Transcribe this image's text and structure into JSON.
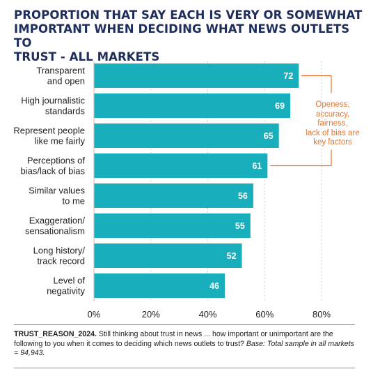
{
  "title_lines": [
    "PROPORTION THAT SAY EACH IS VERY OR SOMEWHAT",
    "IMPORTANT WHEN DECIDING WHAT NEWS OUTLETS TO",
    "TRUST - ALL MARKETS"
  ],
  "colors": {
    "bar": "#19aebc",
    "title": "#1f2d5a",
    "annotation": "#e8772e",
    "grid": "#cfcfcf"
  },
  "chart_data": {
    "type": "bar",
    "orientation": "horizontal",
    "categories": [
      [
        "Transparent",
        "and open"
      ],
      [
        "High journalistic",
        "standards"
      ],
      [
        "Represent people",
        "like me fairly"
      ],
      [
        "Perceptions of",
        "bias/lack of bias"
      ],
      [
        "Similar values",
        "to me"
      ],
      [
        "Exaggeration/",
        "sensationalism"
      ],
      [
        "Long history/",
        "track record"
      ],
      [
        "Level of",
        "negativity"
      ]
    ],
    "values": [
      72,
      69,
      65,
      61,
      56,
      55,
      52,
      46
    ],
    "data_labels": [
      "72",
      "69",
      "65",
      "61",
      "56",
      "55",
      "52",
      "46"
    ],
    "xlim": [
      0,
      80
    ],
    "xticks": [
      0,
      20,
      40,
      60,
      80
    ],
    "xtick_labels": [
      "0%",
      "20%",
      "40%",
      "60%",
      "80%"
    ],
    "grid": true,
    "annotation": {
      "lines": [
        "Openess,",
        "accuracy,",
        "fairness,",
        "lack of bias are",
        "key factors"
      ],
      "bracket_categories": [
        0,
        3
      ]
    }
  },
  "footnote": {
    "code": "TRUST_REASON_2024.",
    "text": " Still thinking about trust in news ... how important or unimportant are the following to you when it comes to deciding which news outlets to trust? ",
    "base": "Base: Total sample in all markets = 94,943."
  }
}
